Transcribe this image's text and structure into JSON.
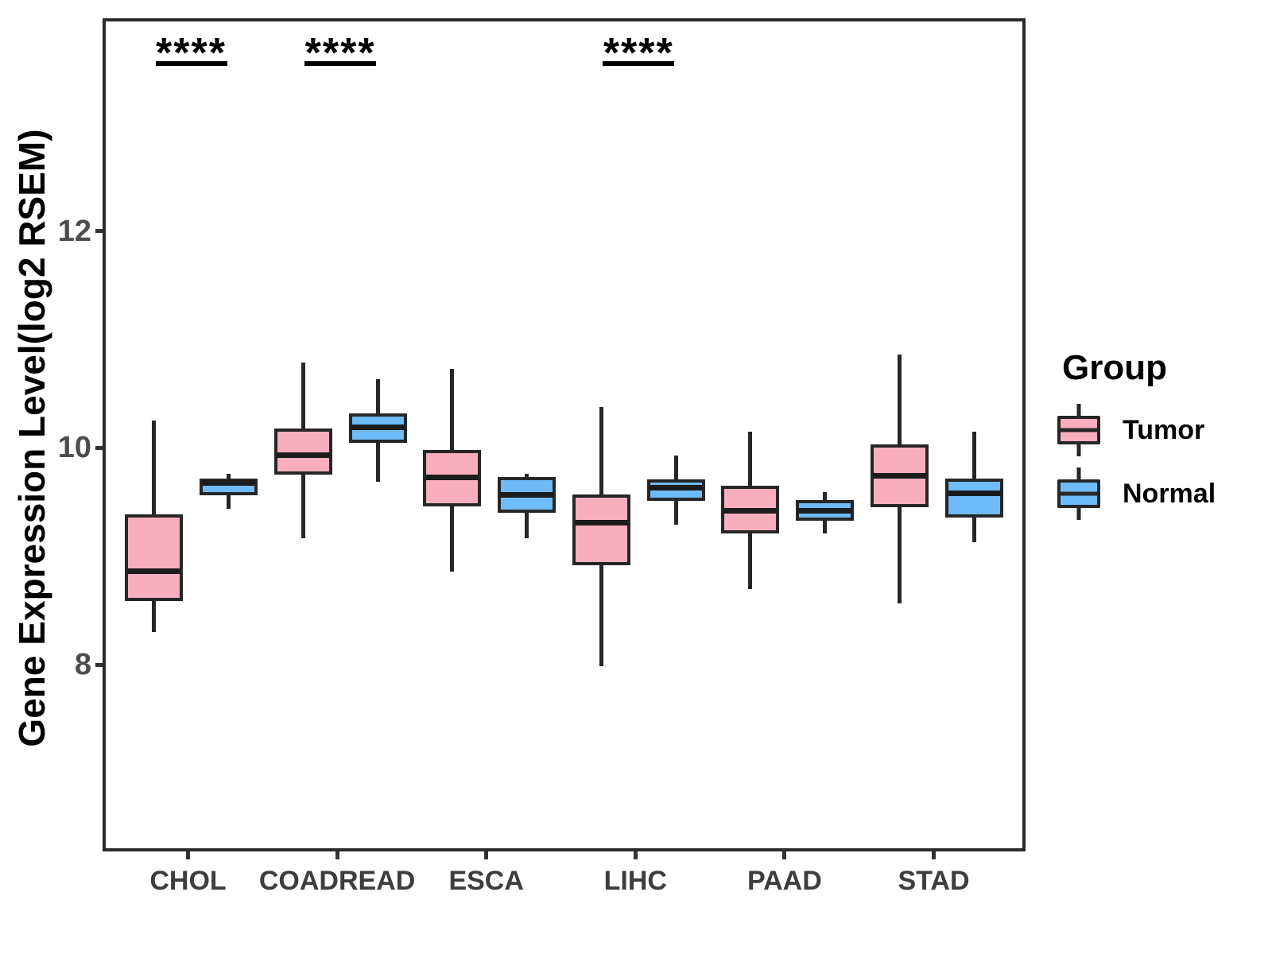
{
  "colors": {
    "tumor_fill": "#F9AEC0",
    "normal_fill": "#6FBBF7",
    "box_border": "#262626",
    "panel_border": "#2b2b2b",
    "axis_text": "#4d4d4d",
    "annotation": "#000000"
  },
  "chart_data": {
    "type": "grouped_boxplot",
    "title": "",
    "xlabel": "",
    "ylabel": "Gene Expression Level(log2 RSEM)",
    "y_ticks": [
      8,
      10,
      12
    ],
    "y_domain": [
      6.34,
      13.96
    ],
    "grid": false,
    "legend_position": "right",
    "categories": [
      "CHOL",
      "COADREAD",
      "ESCA",
      "LIHC",
      "PAAD",
      "STAD"
    ],
    "series": [
      {
        "name": "Tumor",
        "color": "#F9AEC0",
        "boxes": [
          {
            "low": 8.33,
            "q1": 8.62,
            "median": 8.89,
            "q3": 9.42,
            "high": 10.28
          },
          {
            "low": 9.2,
            "q1": 9.78,
            "median": 9.96,
            "q3": 10.21,
            "high": 10.82
          },
          {
            "low": 8.89,
            "q1": 9.49,
            "median": 9.76,
            "q3": 10.01,
            "high": 10.76
          },
          {
            "low": 8.02,
            "q1": 8.95,
            "median": 9.34,
            "q3": 9.6,
            "high": 10.41
          },
          {
            "low": 8.73,
            "q1": 9.24,
            "median": 9.45,
            "q3": 9.68,
            "high": 10.18
          },
          {
            "low": 8.6,
            "q1": 9.48,
            "median": 9.77,
            "q3": 10.06,
            "high": 10.89
          }
        ]
      },
      {
        "name": "Normal",
        "color": "#6FBBF7",
        "boxes": [
          {
            "low": 9.47,
            "q1": 9.59,
            "median": 9.71,
            "q3": 9.75,
            "high": 9.79
          },
          {
            "low": 9.72,
            "q1": 10.08,
            "median": 10.22,
            "q3": 10.35,
            "high": 10.66
          },
          {
            "low": 9.2,
            "q1": 9.43,
            "median": 9.6,
            "q3": 9.76,
            "high": 9.79
          },
          {
            "low": 9.32,
            "q1": 9.54,
            "median": 9.66,
            "q3": 9.74,
            "high": 9.96
          },
          {
            "low": 9.24,
            "q1": 9.36,
            "median": 9.45,
            "q3": 9.55,
            "high": 9.62
          },
          {
            "low": 9.16,
            "q1": 9.39,
            "median": 9.61,
            "q3": 9.75,
            "high": 10.18
          }
        ]
      }
    ],
    "significance": [
      {
        "category": "CHOL",
        "label": "****"
      },
      {
        "category": "COADREAD",
        "label": "****"
      },
      {
        "category": "LIHC",
        "label": "****"
      }
    ]
  },
  "legend": {
    "title": "Group",
    "entries": [
      {
        "label": "Tumor",
        "color": "#F9AEC0"
      },
      {
        "label": "Normal",
        "color": "#6FBBF7"
      }
    ]
  }
}
